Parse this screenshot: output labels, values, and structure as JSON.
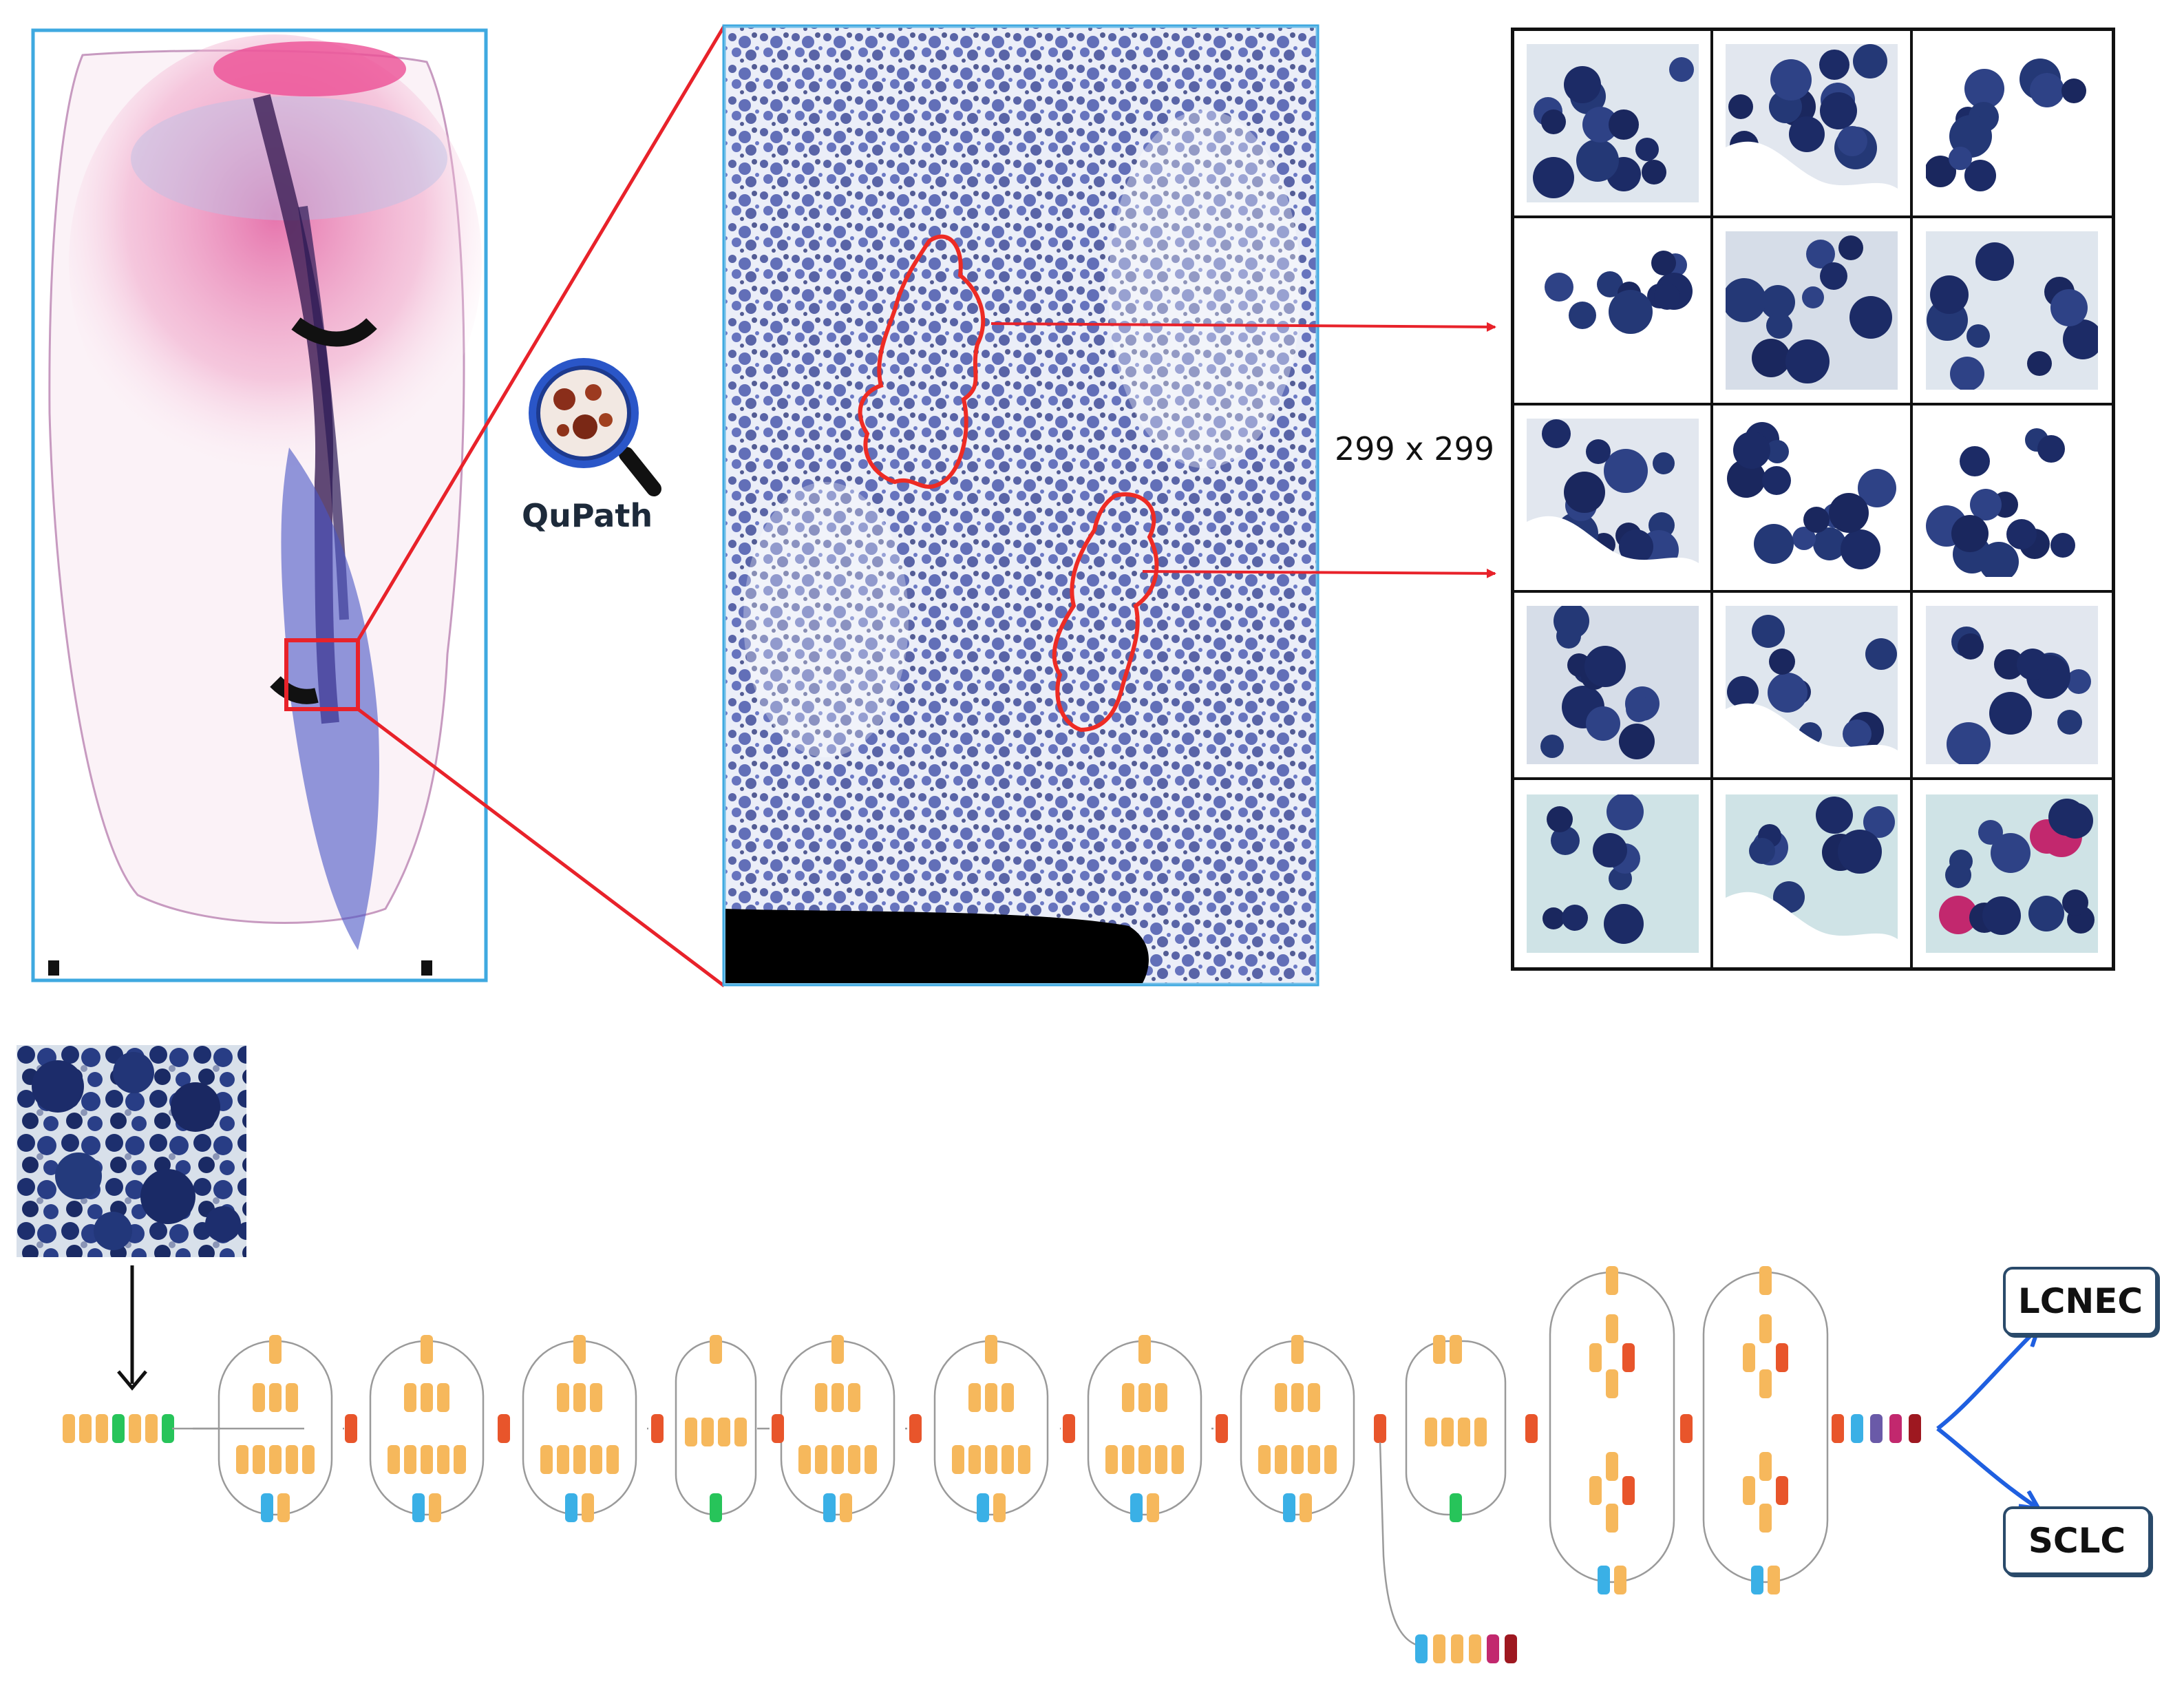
{
  "colors": {
    "panel_border": "#3fa9e0",
    "zoom_lines": "#e8222a",
    "roi_outline": "#ee2b24",
    "grid_lines": "#111111",
    "stain_blue": "#2a3a8f",
    "stain_pink": "#e05a9a",
    "arrow_blue": "#1f5fe0",
    "block_orange": "#f6b85c",
    "block_green": "#27c45a",
    "block_cyan": "#3ab0e6",
    "block_red": "#e8552b",
    "block_purple": "#6a5aa8",
    "block_magenta": "#c2286e",
    "block_darkred": "#9e1820",
    "module_outline": "#9a9a9a"
  },
  "tool": {
    "icon": "qupath-magnifier-icon",
    "label": "QuPath"
  },
  "tile_size_label": "299 x 299",
  "tile_grid": {
    "rows": 5,
    "cols": 3
  },
  "outputs": {
    "class_a": "LCNEC",
    "class_b": "SCLC"
  }
}
